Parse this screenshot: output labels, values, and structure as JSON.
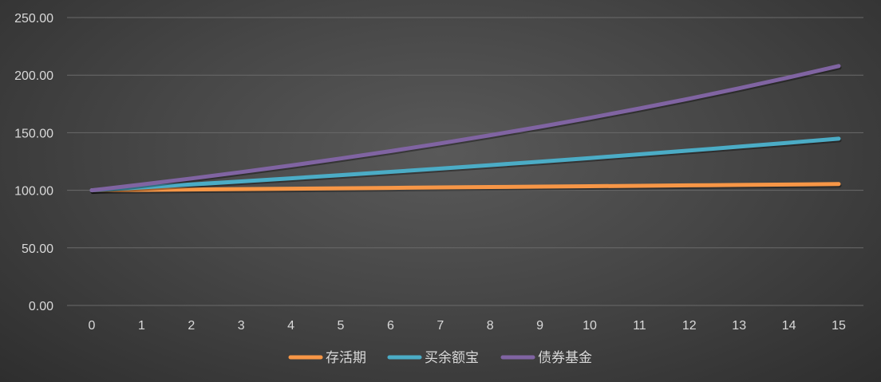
{
  "chart_data": {
    "type": "line",
    "title": "",
    "xlabel": "",
    "ylabel": "",
    "x": [
      0,
      1,
      2,
      3,
      4,
      5,
      6,
      7,
      8,
      9,
      10,
      11,
      12,
      13,
      14,
      15
    ],
    "ylim": [
      0,
      250
    ],
    "yticks": [
      "0.00",
      "50.00",
      "100.00",
      "150.00",
      "200.00",
      "250.00"
    ],
    "grid": true,
    "legend_position": "bottom",
    "series": [
      {
        "name": "存活期",
        "color": "#f79646",
        "values": [
          100,
          100.35,
          100.7,
          101.05,
          101.4,
          101.76,
          102.11,
          102.47,
          102.83,
          103.19,
          103.55,
          103.91,
          104.27,
          104.64,
          105.0,
          105.37
        ]
      },
      {
        "name": "买余额宝",
        "color": "#4bacc6",
        "values": [
          100,
          102.5,
          105.06,
          107.69,
          110.38,
          113.14,
          115.97,
          118.87,
          121.84,
          124.89,
          128.01,
          131.21,
          134.49,
          137.85,
          141.3,
          144.83
        ]
      },
      {
        "name": "债券基金",
        "color": "#8064a2",
        "values": [
          100,
          105,
          110.25,
          115.76,
          121.55,
          127.63,
          134.01,
          140.71,
          147.75,
          155.13,
          162.89,
          171.03,
          179.59,
          188.56,
          197.99,
          207.89
        ]
      }
    ]
  }
}
